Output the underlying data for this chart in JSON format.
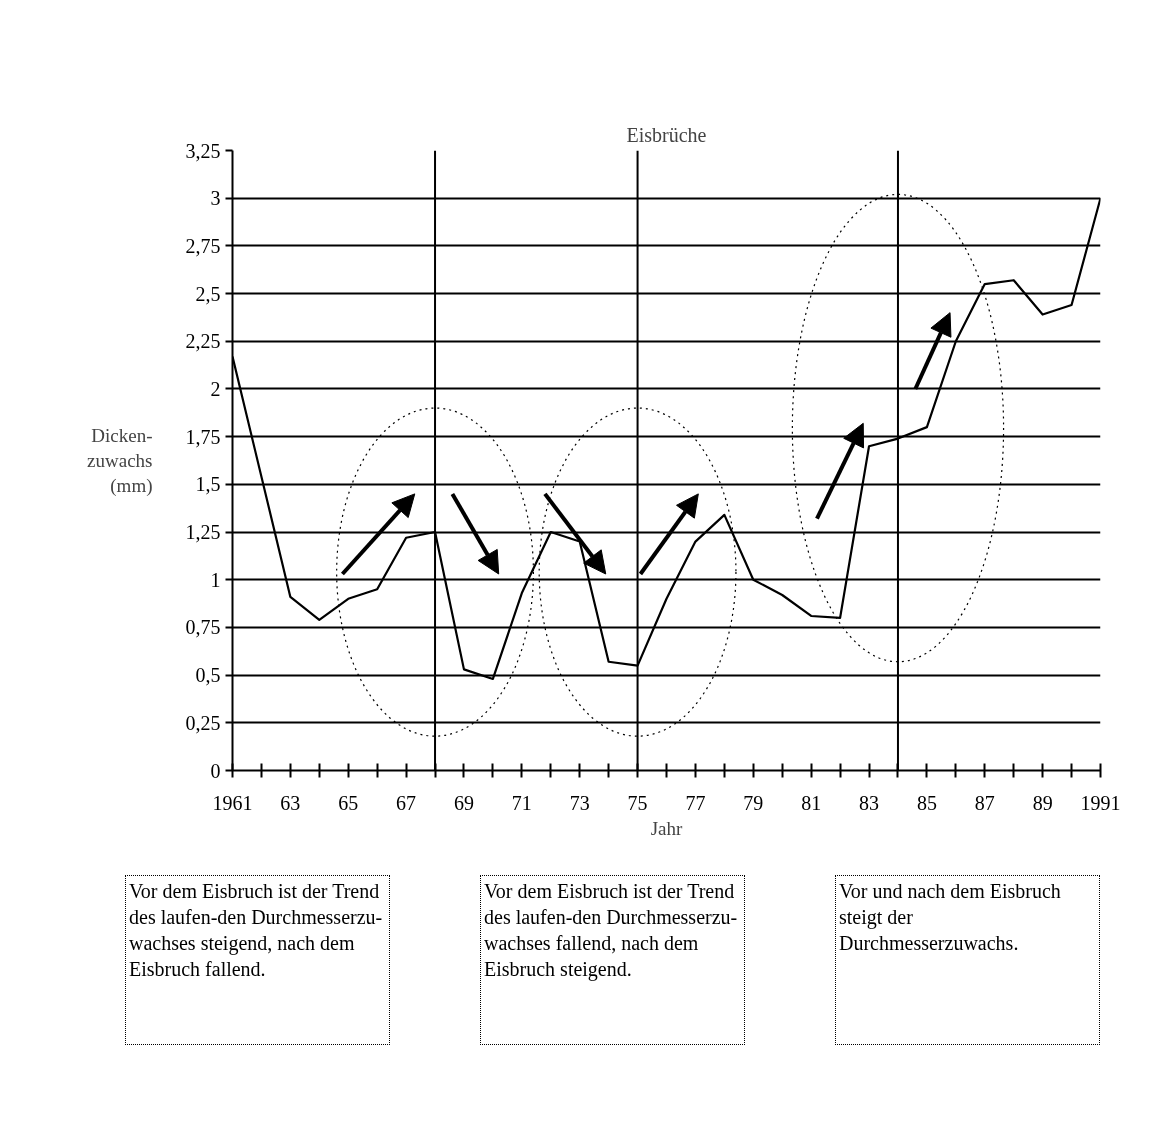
{
  "chart_data": {
    "type": "line",
    "title": "Eisbrüche",
    "xlabel": "Jahr",
    "ylabel": "Dicken-\nzuwachs\n(mm)",
    "series": [
      {
        "color": "#000000",
        "x": [
          1961,
          1963,
          1964,
          1965,
          1966,
          1967,
          1968,
          1969,
          1970,
          1971,
          1972,
          1973,
          1974,
          1975,
          1976,
          1977,
          1978,
          1979,
          1980,
          1981,
          1982,
          1983,
          1984,
          1985,
          1986,
          1987,
          1988,
          1989,
          1990,
          1991
        ],
        "values": [
          2.17,
          0.91,
          0.79,
          0.9,
          0.95,
          1.22,
          1.25,
          0.53,
          0.48,
          0.93,
          1.25,
          1.2,
          0.57,
          0.55,
          0.9,
          1.2,
          1.34,
          1.0,
          0.92,
          0.81,
          0.8,
          1.7,
          1.74,
          1.8,
          2.25,
          2.55,
          2.57,
          2.39,
          2.44,
          3.0
        ]
      }
    ],
    "xlim": [
      1961,
      1991
    ],
    "xticks": [
      {
        "value": 1961,
        "label": "1961"
      },
      {
        "value": 1962,
        "label": null
      },
      {
        "value": 1963,
        "label": "63"
      },
      {
        "value": 1964,
        "label": null
      },
      {
        "value": 1965,
        "label": "65"
      },
      {
        "value": 1966,
        "label": null
      },
      {
        "value": 1967,
        "label": "67"
      },
      {
        "value": 1968,
        "label": null
      },
      {
        "value": 1969,
        "label": "69"
      },
      {
        "value": 1970,
        "label": null
      },
      {
        "value": 1971,
        "label": "71"
      },
      {
        "value": 1972,
        "label": null
      },
      {
        "value": 1973,
        "label": "73"
      },
      {
        "value": 1974,
        "label": null
      },
      {
        "value": 1975,
        "label": "75"
      },
      {
        "value": 1976,
        "label": null
      },
      {
        "value": 1977,
        "label": "77"
      },
      {
        "value": 1978,
        "label": null
      },
      {
        "value": 1979,
        "label": "79"
      },
      {
        "value": 1980,
        "label": null
      },
      {
        "value": 1981,
        "label": "81"
      },
      {
        "value": 1982,
        "label": null
      },
      {
        "value": 1983,
        "label": "83"
      },
      {
        "value": 1984,
        "label": null
      },
      {
        "value": 1985,
        "label": "85"
      },
      {
        "value": 1986,
        "label": null
      },
      {
        "value": 1987,
        "label": "87"
      },
      {
        "value": 1988,
        "label": null
      },
      {
        "value": 1989,
        "label": "89"
      },
      {
        "value": 1990,
        "label": null
      },
      {
        "value": 1991,
        "label": "1991"
      }
    ],
    "ylim": [
      0,
      3.25
    ],
    "yticks": [
      0,
      {
        "value": 0.25,
        "label": "0,25"
      },
      {
        "value": 0.5,
        "label": "0,5"
      },
      {
        "value": 0.75,
        "label": "0,75"
      },
      1,
      {
        "value": 1.25,
        "label": "1,25"
      },
      {
        "value": 1.5,
        "label": "1,5"
      },
      {
        "value": 1.75,
        "label": "1,75"
      },
      2,
      {
        "value": 2.25,
        "label": "2,25"
      },
      {
        "value": 2.5,
        "label": "2,5"
      },
      {
        "value": 2.75,
        "label": "2,75"
      },
      3,
      {
        "value": 3.25,
        "label": "3,25"
      }
    ],
    "grid": "y",
    "marker": "none",
    "line_style": "solid",
    "ref_lines": [
      {
        "axis": "x",
        "value": 1968,
        "color": "#000000"
      },
      {
        "axis": "x",
        "value": 1975,
        "color": "#000000"
      },
      {
        "axis": "x",
        "value": 1984,
        "color": "#000000"
      }
    ],
    "annotations": [
      "Vor dem Eisbruch ist der Trend des laufen-den Durchmesserzu-wachses steigend, nach dem Eisbruch fallend.",
      "Vor dem Eisbruch ist der Trend des laufen-den Durchmesserzu-wachses fallend, nach dem Eisbruch steigend.",
      "Vor und nach dem Eisbruch steigt der Durchmesserzuwachs."
    ]
  }
}
